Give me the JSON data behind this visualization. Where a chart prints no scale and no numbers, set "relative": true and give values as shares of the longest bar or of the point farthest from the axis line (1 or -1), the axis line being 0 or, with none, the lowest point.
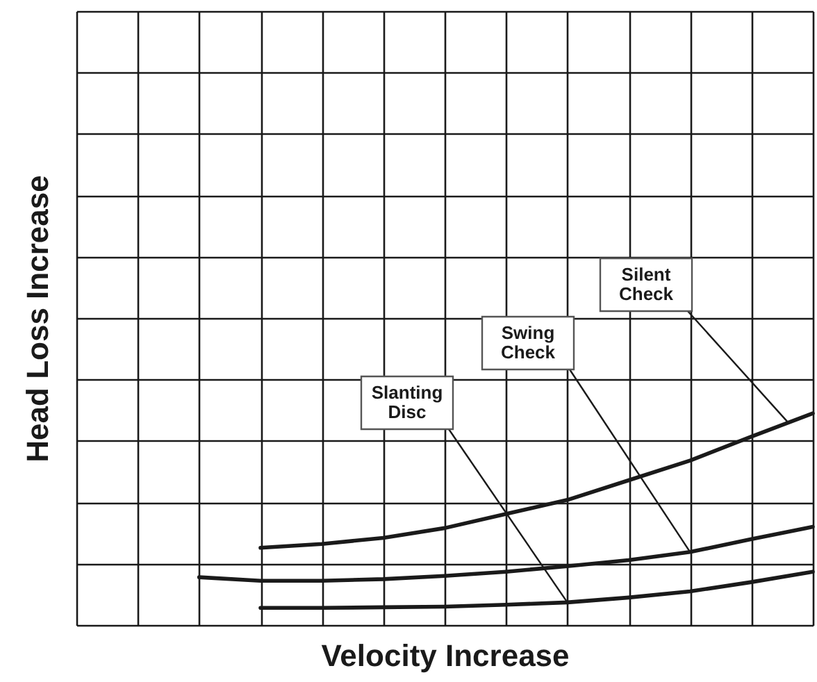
{
  "chart_data": {
    "type": "line",
    "relative": true,
    "xlabel": "Velocity Increase",
    "ylabel": "Head Loss Increase",
    "grid": true,
    "marker": "none",
    "line_style": "solid",
    "categories": [
      null,
      null,
      null,
      null,
      null,
      null,
      null,
      null,
      null,
      null,
      null,
      null,
      null
    ],
    "series": [
      {
        "name": "Slanting Disc",
        "color": "#1a1a1a",
        "values": [
          null,
          null,
          null,
          0.081,
          0.081,
          0.084,
          0.087,
          0.096,
          0.107,
          0.13,
          0.159,
          0.203,
          0.252
        ]
      },
      {
        "name": "Swing Check",
        "color": "#1a1a1a",
        "values": [
          null,
          null,
          0.226,
          0.209,
          0.209,
          0.217,
          0.232,
          0.252,
          0.278,
          0.307,
          0.345,
          0.406,
          0.464
        ]
      },
      {
        "name": "Silent Check",
        "color": "#1a1a1a",
        "values": [
          null,
          null,
          null,
          0.365,
          0.383,
          0.412,
          0.458,
          0.525,
          0.591,
          0.684,
          0.777,
          0.89,
          1
        ]
      }
    ]
  }
}
